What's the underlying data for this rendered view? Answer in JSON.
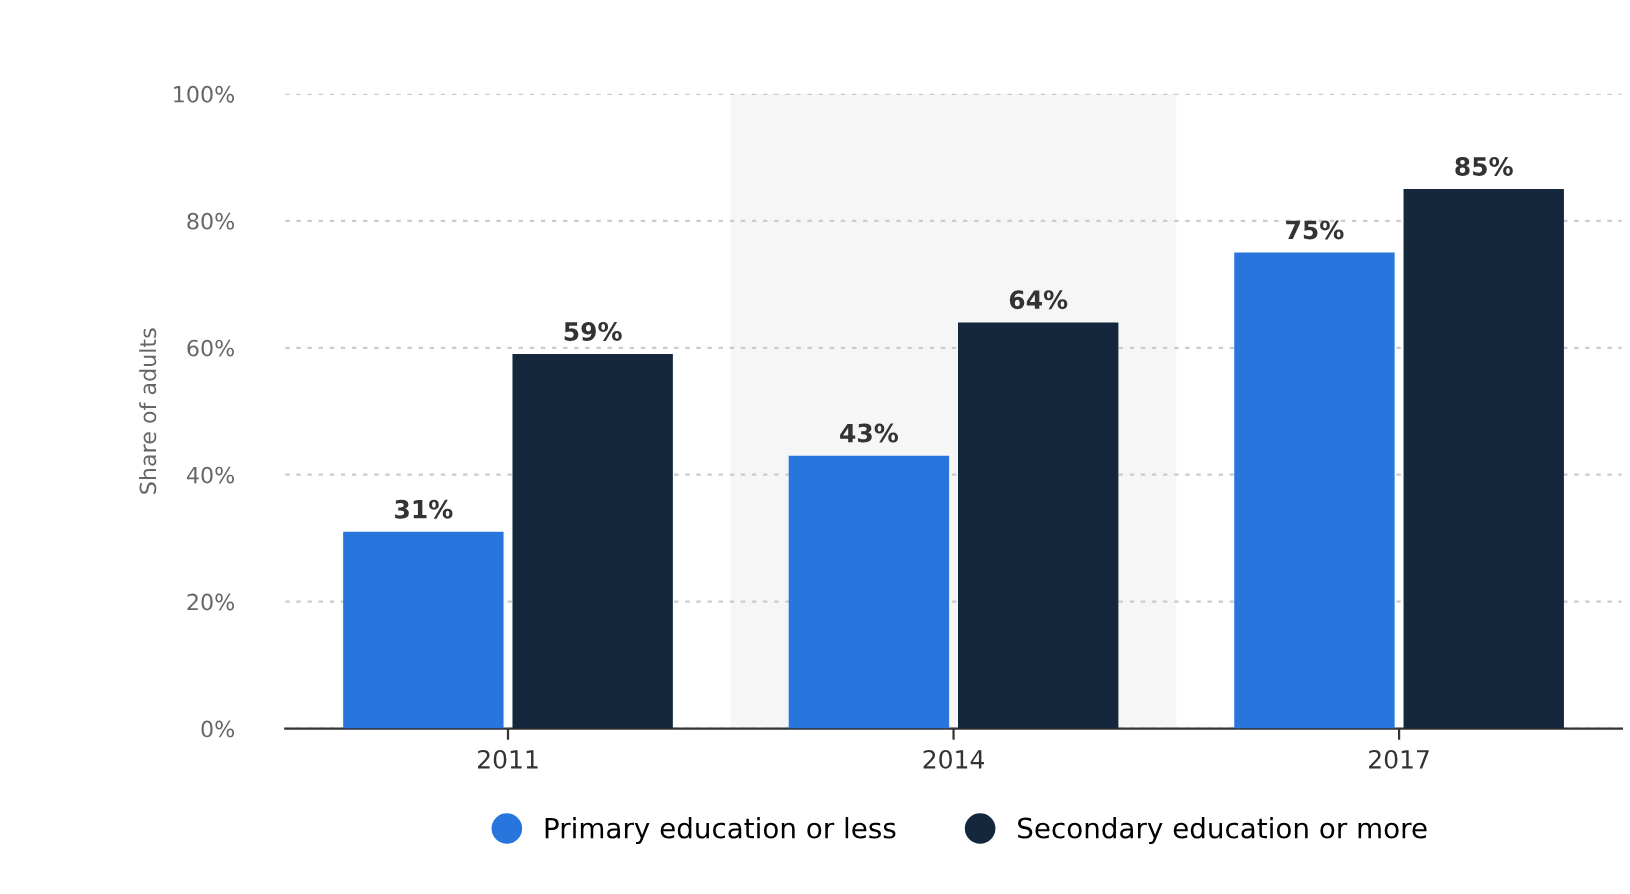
{
  "chart_data": {
    "type": "bar",
    "ylabel": "Share of adults",
    "categories": [
      "2011",
      "2014",
      "2017"
    ],
    "series": [
      {
        "name": "Primary education or less",
        "color": "#2876dd",
        "values": [
          31,
          43,
          75
        ],
        "value_labels": [
          "31%",
          "43%",
          "75%"
        ]
      },
      {
        "name": "Secondary education or more",
        "color": "#14273d",
        "values": [
          59,
          64,
          85
        ],
        "value_labels": [
          "59%",
          "64%",
          "85%"
        ]
      }
    ],
    "ylim": [
      0,
      100
    ],
    "yticks": [
      {
        "value": 0,
        "label": "0%"
      },
      {
        "value": 20,
        "label": "20%"
      },
      {
        "value": 40,
        "label": "40%"
      },
      {
        "value": 60,
        "label": "60%"
      },
      {
        "value": 80,
        "label": "80%"
      },
      {
        "value": 100,
        "label": "100%"
      }
    ],
    "bands": [
      {
        "axis": "x",
        "from": "2014",
        "to": "2014",
        "color": "#f6f6f6"
      }
    ],
    "grid": "y",
    "legend": "bottom"
  }
}
